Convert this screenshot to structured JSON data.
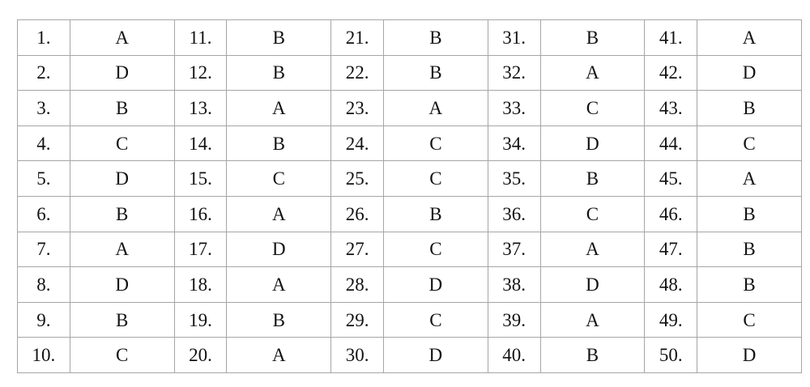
{
  "table": {
    "rows": [
      [
        "1.",
        "A",
        "11.",
        "B",
        "21.",
        "B",
        "31.",
        "B",
        "41.",
        "A"
      ],
      [
        "2.",
        "D",
        "12.",
        "B",
        "22.",
        "B",
        "32.",
        "A",
        "42.",
        "D"
      ],
      [
        "3.",
        "B",
        "13.",
        "A",
        "23.",
        "A",
        "33.",
        "C",
        "43.",
        "B"
      ],
      [
        "4.",
        "C",
        "14.",
        "B",
        "24.",
        "C",
        "34.",
        "D",
        "44.",
        "C"
      ],
      [
        "5.",
        "D",
        "15.",
        "C",
        "25.",
        "C",
        "35.",
        "B",
        "45.",
        "A"
      ],
      [
        "6.",
        "B",
        "16.",
        "A",
        "26.",
        "B",
        "36.",
        "C",
        "46.",
        "B"
      ],
      [
        "7.",
        "A",
        "17.",
        "D",
        "27.",
        "C",
        "37.",
        "A",
        "47.",
        "B"
      ],
      [
        "8.",
        "D",
        "18.",
        "A",
        "28.",
        "D",
        "38.",
        "D",
        "48.",
        "B"
      ],
      [
        "9.",
        "B",
        "19.",
        "B",
        "29.",
        "C",
        "39.",
        "A",
        "49.",
        "C"
      ],
      [
        "10.",
        "C",
        "20.",
        "A",
        "30.",
        "D",
        "40.",
        "B",
        "50.",
        "D"
      ]
    ]
  },
  "colors": {
    "border": "#a6a6a6",
    "text": "#121212",
    "background": "#ffffff"
  }
}
